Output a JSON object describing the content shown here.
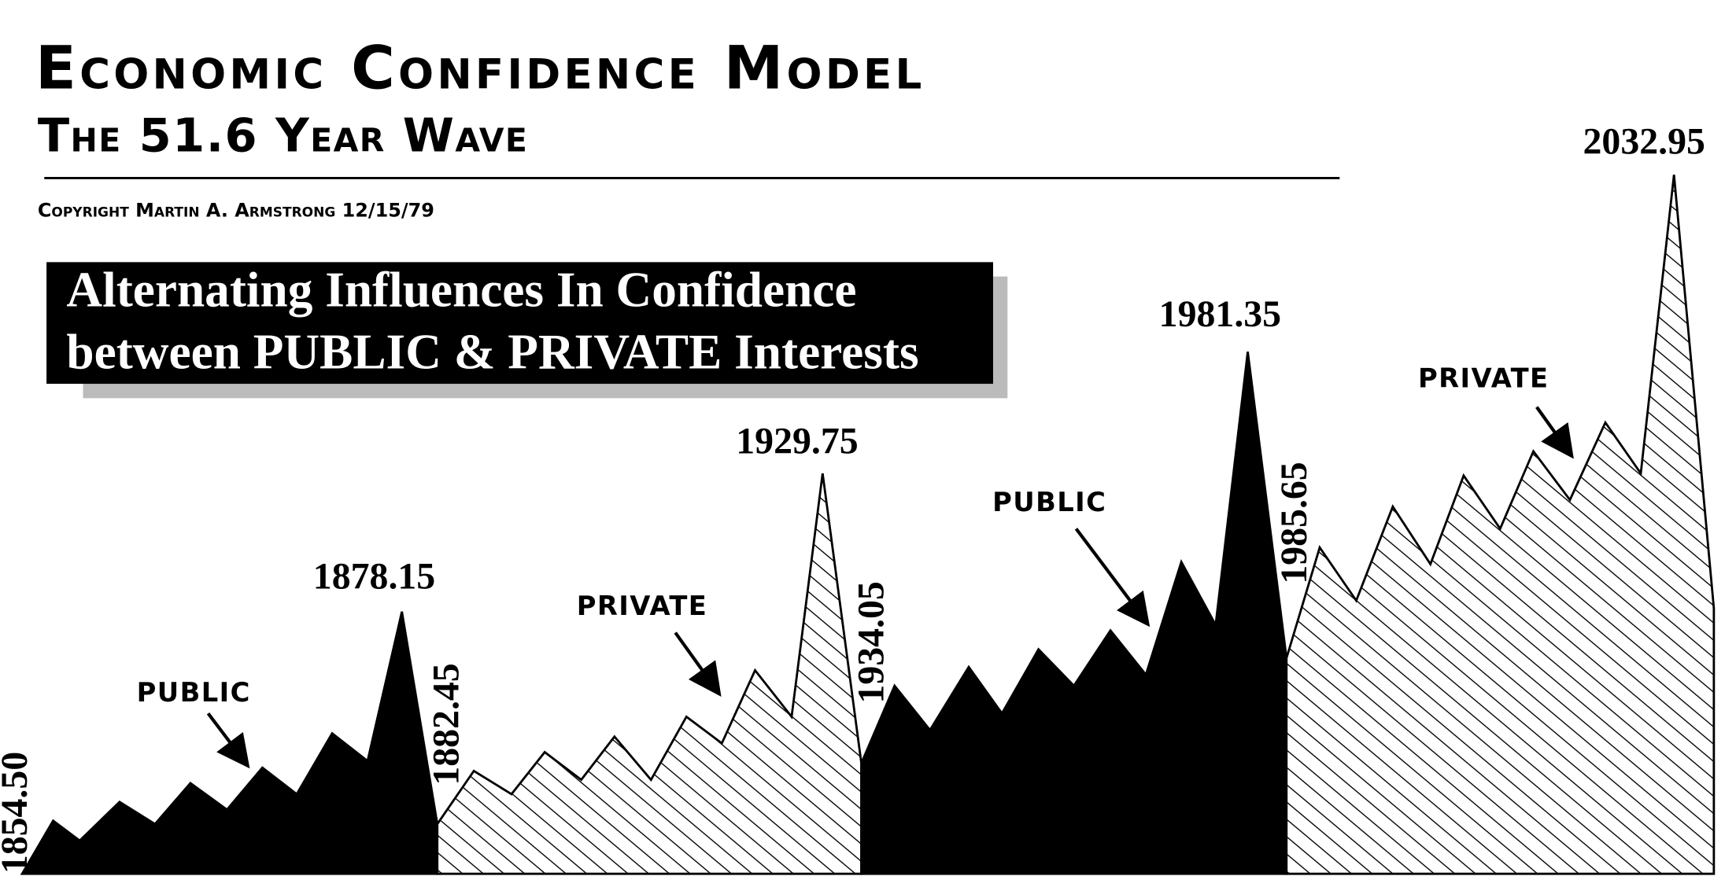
{
  "header": {
    "title": "Economic Confidence Model",
    "subtitle": "The 51.6 Year Wave",
    "copyright": "Copyright Martin A. Armstrong 12/15/79"
  },
  "banner": {
    "lines": [
      "Alternating Influences In Confidence",
      "between PUBLIC & PRIVATE Interests"
    ]
  },
  "waves": [
    {
      "label": "PUBLIC",
      "start": "1854.50",
      "peak": "1878.15"
    },
    {
      "label": "PRIVATE",
      "start": "1882.45",
      "peak": "1929.75"
    },
    {
      "label": "PUBLIC",
      "start": "1934.05",
      "peak": "1981.35"
    },
    {
      "label": "PRIVATE",
      "start": "1985.65",
      "peak": "2032.95"
    }
  ]
}
